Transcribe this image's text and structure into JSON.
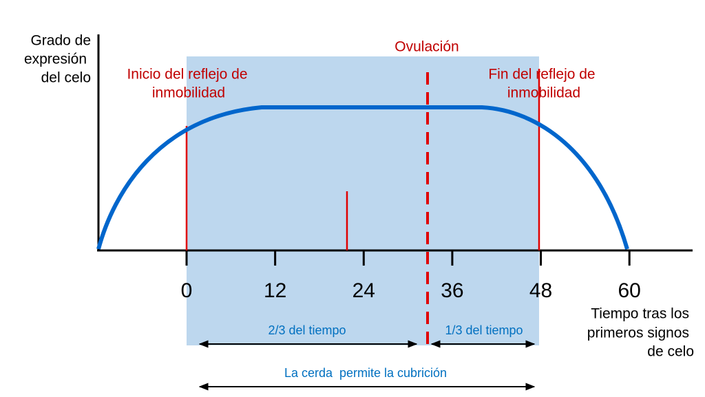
{
  "y_axis_label": [
    "Grado de",
    "expresión",
    "del celo"
  ],
  "x_axis_label": [
    "Tiempo tras los",
    "primeros signos",
    "de celo"
  ],
  "x_ticks": [
    0,
    12,
    24,
    36,
    48,
    60
  ],
  "annotations": {
    "start": [
      "Inicio del reflejo de",
      "inmobilidad"
    ],
    "end": [
      "Fin del reflejo de",
      "inmobilidad"
    ],
    "ovulation": "Ovulación",
    "two_thirds": "2/3 del tiempo",
    "one_third": "1/3 del tiempo",
    "mating": "La cerda  permite la cubrición"
  }
}
